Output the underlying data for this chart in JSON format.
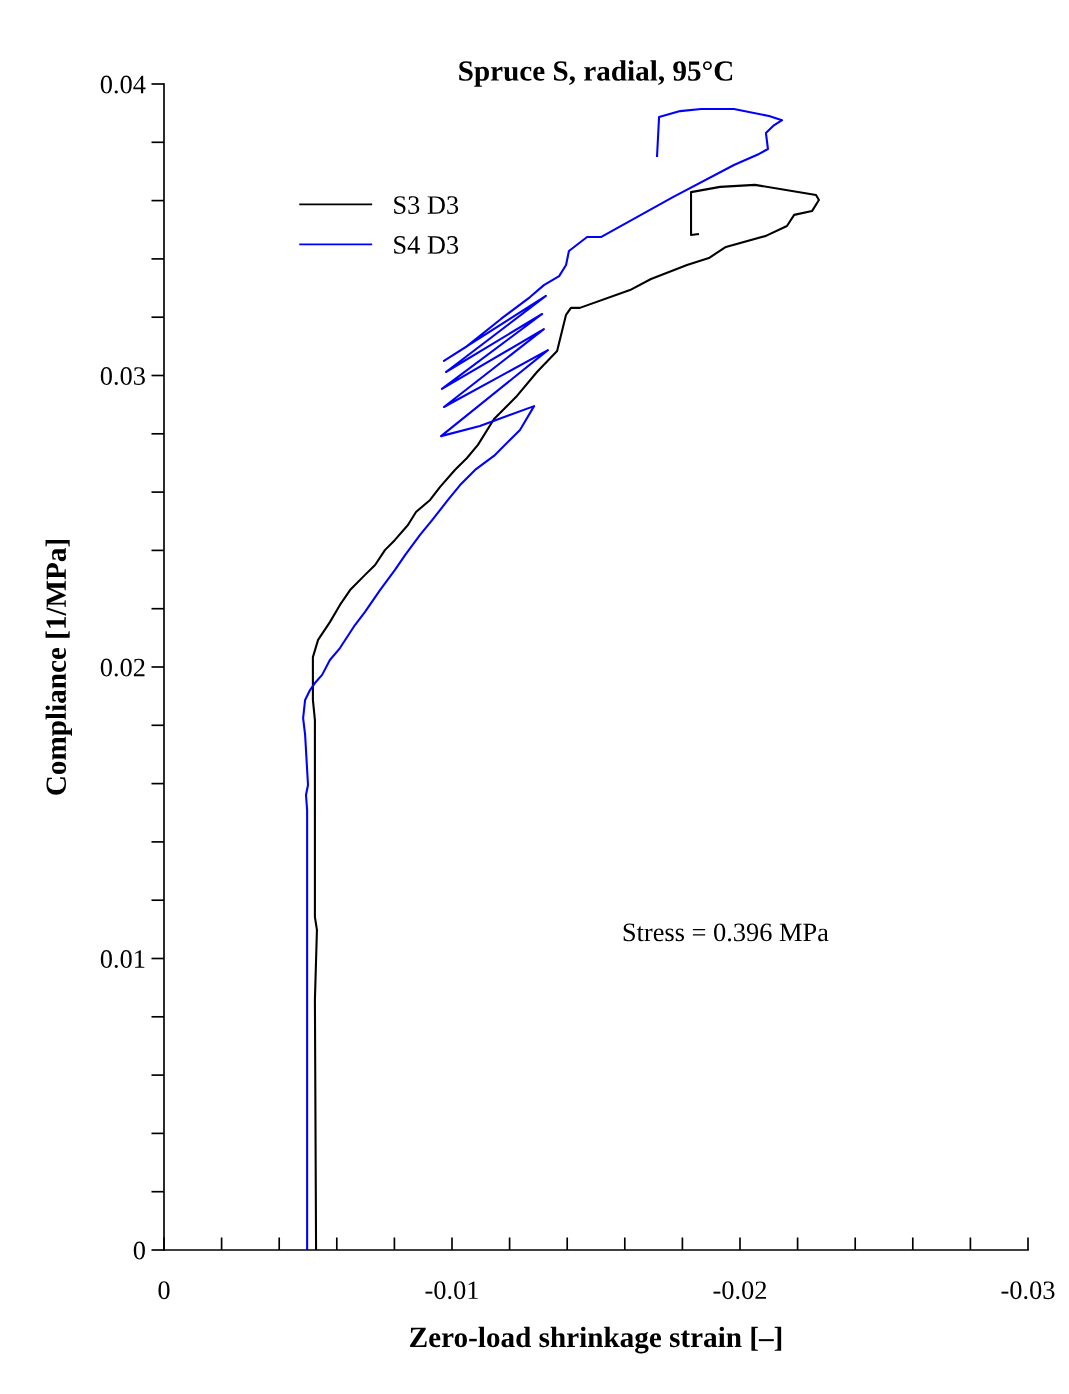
{
  "chart_data": {
    "type": "line",
    "title": "Spruce S, radial, 95°C",
    "xlabel": "Zero-load shrinkage strain [–]",
    "ylabel": "Compliance [1/MPa]",
    "annotations": [
      "Stress = 0.396 MPa"
    ],
    "legend": "top left",
    "grid": false,
    "marker": "none",
    "line_style": "solid",
    "xlim": [
      0,
      -0.03
    ],
    "ylim": [
      0,
      0.04
    ],
    "xticks": [
      0,
      {
        "value": -0.002,
        "label": null
      },
      {
        "value": -0.004,
        "label": null
      },
      {
        "value": -0.006,
        "label": null
      },
      {
        "value": -0.008,
        "label": null
      },
      -0.01,
      {
        "value": -0.012,
        "label": null
      },
      {
        "value": -0.014,
        "label": null
      },
      {
        "value": -0.016,
        "label": null
      },
      {
        "value": -0.018,
        "label": null
      },
      -0.02,
      {
        "value": -0.022,
        "label": null
      },
      {
        "value": -0.024,
        "label": null
      },
      {
        "value": -0.026,
        "label": null
      },
      {
        "value": -0.028,
        "label": null
      },
      -0.03
    ],
    "yticks": [
      0,
      {
        "value": 0.002,
        "label": null
      },
      {
        "value": 0.004,
        "label": null
      },
      {
        "value": 0.006,
        "label": null
      },
      {
        "value": 0.008,
        "label": null
      },
      0.01,
      {
        "value": 0.012,
        "label": null
      },
      {
        "value": 0.014,
        "label": null
      },
      {
        "value": 0.016,
        "label": null
      },
      {
        "value": 0.018,
        "label": null
      },
      0.02,
      {
        "value": 0.022,
        "label": null
      },
      {
        "value": 0.024,
        "label": null
      },
      {
        "value": 0.026,
        "label": null
      },
      {
        "value": 0.028,
        "label": null
      },
      0.03,
      {
        "value": 0.032,
        "label": null
      },
      {
        "value": 0.034,
        "label": null
      },
      {
        "value": 0.036,
        "label": null
      },
      {
        "value": 0.038,
        "label": null
      },
      0.04
    ],
    "series": [
      {
        "name": "S3 D3",
        "color": "#000000",
        "x": [
          -0.00528,
          -0.00524,
          -0.00531,
          -0.00524,
          -0.00524,
          -0.00524,
          -0.00517,
          -0.00517,
          -0.00535,
          -0.00576,
          -0.00611,
          -0.00646,
          -0.00698,
          -0.00733,
          -0.00767,
          -0.00802,
          -0.00847,
          -0.00875,
          -0.00924,
          -0.00958,
          -0.0101,
          -0.01052,
          -0.0109,
          -0.01146,
          -0.01222,
          -0.01295,
          -0.01365,
          -0.01396,
          -0.01413,
          -0.01444,
          -0.01618,
          -0.01691,
          -0.01816,
          -0.01892,
          -0.01951,
          -0.0209,
          -0.02163,
          -0.02188,
          -0.0225,
          -0.02274,
          -0.02264,
          -0.02052,
          -0.01931,
          -0.0183,
          -0.0183,
          -0.01854
        ],
        "values": [
          0,
          0.00858,
          0.01098,
          0.01142,
          0.01441,
          0.01818,
          0.01887,
          0.02034,
          0.02093,
          0.02154,
          0.02213,
          0.02264,
          0.02316,
          0.0235,
          0.02401,
          0.02436,
          0.02487,
          0.02532,
          0.02573,
          0.02617,
          0.02676,
          0.02717,
          0.02762,
          0.02851,
          0.02926,
          0.03012,
          0.03084,
          0.03208,
          0.03232,
          0.03232,
          0.03293,
          0.03331,
          0.03379,
          0.03403,
          0.03441,
          0.03479,
          0.03513,
          0.03551,
          0.03564,
          0.03602,
          0.03619,
          0.03654,
          0.03647,
          0.03629,
          0.03482,
          0.03485
        ]
      },
      {
        "name": "S4 D3",
        "color": "#0000ff",
        "x": [
          -0.00497,
          -0.00497,
          -0.00493,
          -0.005,
          -0.0049,
          -0.00483,
          -0.0049,
          -0.00507,
          -0.00524,
          -0.00549,
          -0.00576,
          -0.00611,
          -0.00663,
          -0.00698,
          -0.0075,
          -0.00802,
          -0.00837,
          -0.00889,
          -0.00931,
          -0.00986,
          -0.01028,
          -0.0108,
          -0.01149,
          -0.01201,
          -0.01236,
          -0.01285,
          -0.01097,
          -0.00962,
          -0.01333,
          -0.00972,
          -0.01319,
          -0.00965,
          -0.01313,
          -0.00979,
          -0.01326,
          -0.00972,
          -0.01049,
          -0.0117,
          -0.01271,
          -0.01319,
          -0.01372,
          -0.01396,
          -0.01406,
          -0.01469,
          -0.01517,
          -0.01767,
          -0.01979,
          -0.02066,
          -0.02097,
          -0.0209,
          -0.02115,
          -0.02146,
          -0.02101,
          -0.01979,
          -0.01865,
          -0.01792,
          -0.01719,
          -0.01712
        ],
        "values": [
          0,
          0.01509,
          0.01561,
          0.01595,
          0.01767,
          0.01825,
          0.01887,
          0.01921,
          0.01945,
          0.01973,
          0.02024,
          0.02065,
          0.02144,
          0.02189,
          0.02264,
          0.02333,
          0.02384,
          0.02453,
          0.02504,
          0.02573,
          0.02624,
          0.02676,
          0.02727,
          0.02779,
          0.02813,
          0.02895,
          0.02827,
          0.02792,
          0.03087,
          0.02892,
          0.03159,
          0.02954,
          0.03211,
          0.03012,
          0.03273,
          0.0305,
          0.03098,
          0.03194,
          0.03269,
          0.0331,
          0.03341,
          0.03379,
          0.03427,
          0.03475,
          0.03475,
          0.03612,
          0.03722,
          0.0376,
          0.03777,
          0.03832,
          0.03856,
          0.03876,
          0.0389,
          0.03914,
          0.03914,
          0.03907,
          0.03887,
          0.03753
        ]
      }
    ]
  }
}
